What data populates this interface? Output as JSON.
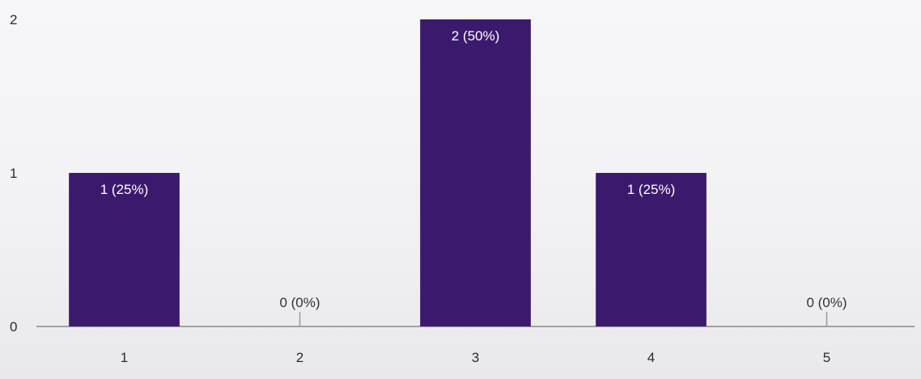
{
  "chart_data": {
    "type": "bar",
    "categories": [
      "1",
      "2",
      "3",
      "4",
      "5"
    ],
    "values": [
      1,
      0,
      2,
      1,
      0
    ],
    "data_labels": [
      "1 (25%)",
      "0 (0%)",
      "2 (50%)",
      "1 (25%)",
      "0 (0%)"
    ],
    "y_ticks": [
      "0",
      "1",
      "2"
    ],
    "ylim": [
      0,
      2
    ],
    "title": "",
    "xlabel": "",
    "ylabel": "",
    "grid": false,
    "legend": "none",
    "bar_color": "#3b1a6e",
    "label_inside_color": "#ffffff",
    "label_outside_color": "#333333",
    "axis_color": "#8a8a8a"
  }
}
